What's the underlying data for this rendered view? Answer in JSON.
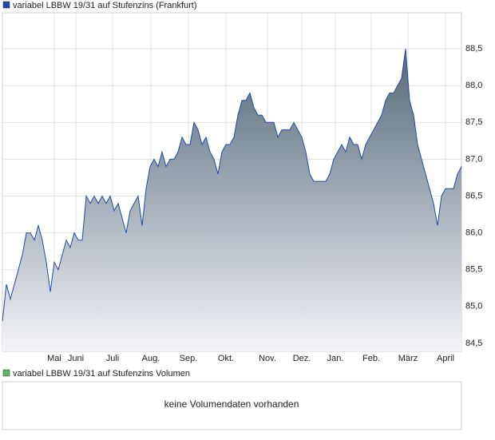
{
  "chart_data": {
    "type": "area",
    "title": "variabel LBBW 19/31 auf Stufenzins (Frankfurt)",
    "color": "#1f4aa8",
    "values": [
      84.8,
      85.3,
      85.1,
      85.3,
      85.5,
      85.7,
      86.0,
      86.0,
      85.9,
      86.1,
      85.9,
      85.6,
      85.2,
      85.6,
      85.5,
      85.7,
      85.9,
      85.8,
      86.0,
      85.9,
      85.9,
      86.5,
      86.4,
      86.5,
      86.4,
      86.5,
      86.4,
      86.5,
      86.3,
      86.4,
      86.2,
      86.0,
      86.3,
      86.4,
      86.5,
      86.1,
      86.6,
      86.9,
      87.0,
      86.9,
      87.1,
      86.9,
      87.0,
      87.0,
      87.1,
      87.3,
      87.2,
      87.2,
      87.5,
      87.4,
      87.2,
      87.3,
      87.1,
      87.0,
      86.8,
      87.1,
      87.2,
      87.2,
      87.3,
      87.6,
      87.8,
      87.8,
      87.9,
      87.7,
      87.6,
      87.6,
      87.5,
      87.5,
      87.5,
      87.3,
      87.4,
      87.4,
      87.4,
      87.5,
      87.4,
      87.3,
      87.1,
      86.8,
      86.7,
      86.7,
      86.7,
      86.7,
      86.8,
      87.0,
      87.1,
      87.2,
      87.1,
      87.3,
      87.2,
      87.2,
      87.0,
      87.2,
      87.3,
      87.4,
      87.5,
      87.6,
      87.8,
      87.9,
      87.9,
      88.0,
      88.1,
      88.5,
      87.8,
      87.6,
      87.2,
      87.0,
      86.8,
      86.6,
      86.4,
      86.1,
      86.5,
      86.6,
      86.6,
      86.6,
      86.8,
      86.9
    ],
    "xlim": [
      0,
      115
    ],
    "xticks": [
      {
        "value": 13,
        "label": "Mai"
      },
      {
        "value": 18.4,
        "label": "Juni"
      },
      {
        "value": 27.6,
        "label": "Juli"
      },
      {
        "value": 37.2,
        "label": "Aug."
      },
      {
        "value": 46.6,
        "label": "Sep."
      },
      {
        "value": 56,
        "label": "Okt."
      },
      {
        "value": 66.4,
        "label": "Nov."
      },
      {
        "value": 75,
        "label": "Dez."
      },
      {
        "value": 83.4,
        "label": "Jan."
      },
      {
        "value": 92.4,
        "label": "Feb."
      },
      {
        "value": 101.6,
        "label": "März"
      },
      {
        "value": 111,
        "label": "April"
      }
    ],
    "ylim": [
      84.39,
      88.99
    ],
    "yticks": [
      {
        "value": 84.5,
        "label": "84,5"
      },
      {
        "value": 85,
        "label": "85,0"
      },
      {
        "value": 85.5,
        "label": "85,5"
      },
      {
        "value": 86,
        "label": "86,0"
      },
      {
        "value": 86.5,
        "label": "86,5"
      },
      {
        "value": 87,
        "label": "87,0"
      },
      {
        "value": 87.5,
        "label": "87,5"
      },
      {
        "value": 88,
        "label": "88,0"
      },
      {
        "value": 88.5,
        "label": "88,5"
      }
    ],
    "grid": true,
    "volume": {
      "title": "variabel LBBW 19/31 auf Stufenzins Volumen",
      "color": "#5cb85c",
      "message": "keine Volumendaten vorhanden"
    }
  }
}
